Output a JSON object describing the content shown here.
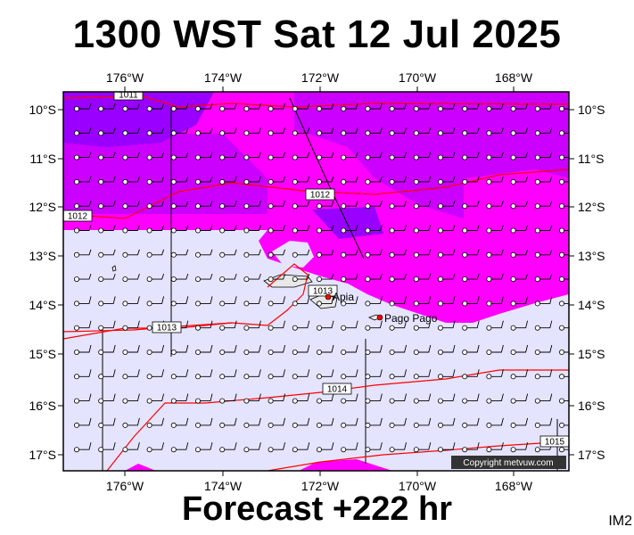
{
  "title": "1300 WST Sat 12 Jul 2025",
  "footer": "Forecast +222 hr",
  "tag": "IM2",
  "copyright": "Copyright metvuw.com",
  "colors": {
    "background": "#e4e4ff",
    "precip_light": "#ff00ff",
    "precip_medium": "#cc00ff",
    "precip_heavy": "#9900ff",
    "isobar": "#ff0000",
    "frame": "#000000"
  },
  "axes": {
    "lon_labels": [
      "176°W",
      "174°W",
      "172°W",
      "170°W",
      "168°W"
    ],
    "lat_labels": [
      "10°S",
      "11°S",
      "12°S",
      "13°S",
      "14°S",
      "15°S",
      "16°S",
      "17°S"
    ]
  },
  "isobars": [
    {
      "label": "1011"
    },
    {
      "label": "1012"
    },
    {
      "label": "1012"
    },
    {
      "label": "1013"
    },
    {
      "label": "1013"
    },
    {
      "label": "1014"
    },
    {
      "label": "1015"
    }
  ],
  "places": [
    {
      "name": "Apia"
    },
    {
      "name": "Pago Pago"
    }
  ]
}
